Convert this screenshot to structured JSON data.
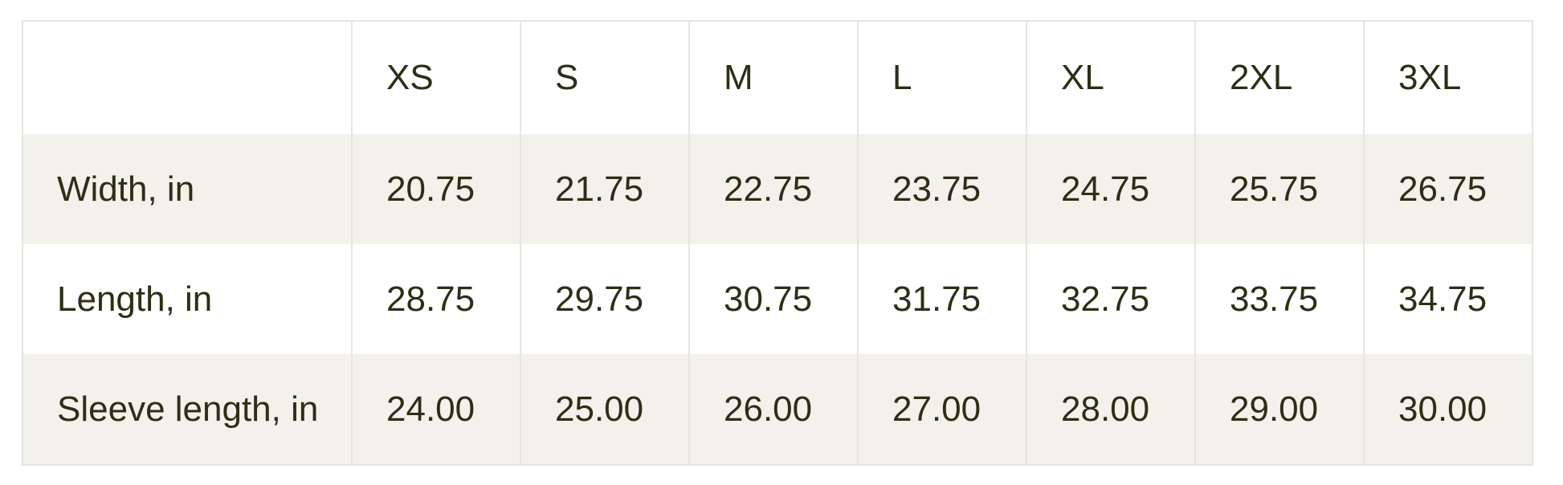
{
  "table": {
    "name": "size-chart",
    "unit_note": "measurements in inches",
    "header": [
      "",
      "XS",
      "S",
      "M",
      "L",
      "XL",
      "2XL",
      "3XL"
    ],
    "rows": [
      {
        "label": "Width, in",
        "values": [
          "20.75",
          "21.75",
          "22.75",
          "23.75",
          "24.75",
          "25.75",
          "26.75"
        ]
      },
      {
        "label": "Length, in",
        "values": [
          "28.75",
          "29.75",
          "30.75",
          "31.75",
          "32.75",
          "33.75",
          "34.75"
        ]
      },
      {
        "label": "Sleeve length, in",
        "values": [
          "24.00",
          "25.00",
          "26.00",
          "27.00",
          "28.00",
          "29.00",
          "30.00"
        ]
      }
    ]
  },
  "colors": {
    "text": "#2e2d16",
    "border": "#e6e5de",
    "shaded_row_bg": "#f2f1eb",
    "page_bg": "#ffffff"
  }
}
